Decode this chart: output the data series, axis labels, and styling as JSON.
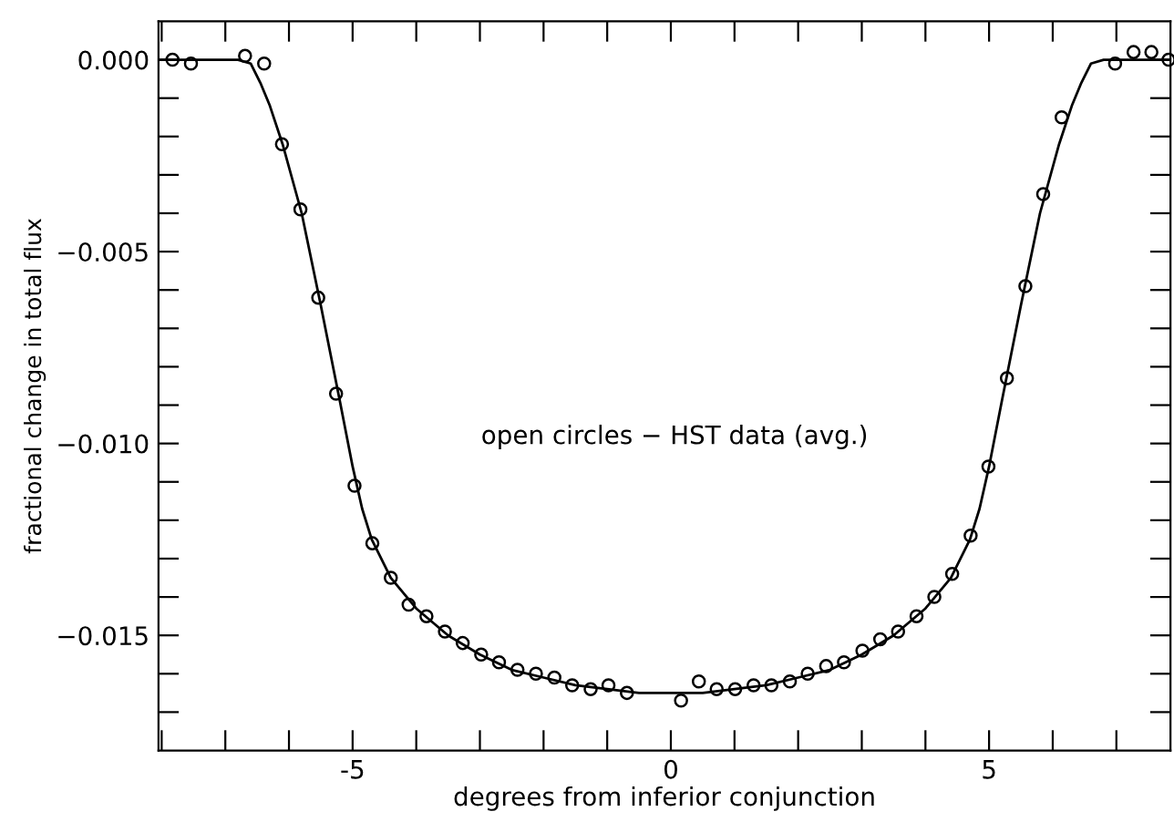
{
  "chart_data": {
    "type": "scatter",
    "xlabel": "degrees from inferior conjunction",
    "ylabel": "fractional change in total flux",
    "annotations": [
      "open circles − HST data (avg.)"
    ],
    "marker": "circle",
    "grid": false,
    "legend": false,
    "xlim": [
      -8.05,
      7.85
    ],
    "ylim": [
      -0.018,
      0.001
    ],
    "xticks": [
      {
        "value": -8,
        "label": null
      },
      {
        "value": -7,
        "label": null
      },
      {
        "value": -6,
        "label": null
      },
      -5,
      {
        "value": -4,
        "label": null
      },
      {
        "value": -3,
        "label": null
      },
      {
        "value": -2,
        "label": null
      },
      {
        "value": -1,
        "label": null
      },
      0,
      {
        "value": 1,
        "label": null
      },
      {
        "value": 2,
        "label": null
      },
      {
        "value": 3,
        "label": null
      },
      {
        "value": 4,
        "label": null
      },
      5,
      {
        "value": 6,
        "label": null
      },
      {
        "value": 7,
        "label": null
      }
    ],
    "yticks": [
      {
        "value": 0,
        "label": "0.000"
      },
      {
        "value": -0.001,
        "label": null
      },
      {
        "value": -0.002,
        "label": null
      },
      {
        "value": -0.003,
        "label": null
      },
      {
        "value": -0.004,
        "label": null
      },
      {
        "value": -0.005,
        "label": "−0.005"
      },
      {
        "value": -0.006,
        "label": null
      },
      {
        "value": -0.007,
        "label": null
      },
      {
        "value": -0.008,
        "label": null
      },
      {
        "value": -0.009,
        "label": null
      },
      {
        "value": -0.01,
        "label": "−0.010"
      },
      {
        "value": -0.011,
        "label": null
      },
      {
        "value": -0.012,
        "label": null
      },
      {
        "value": -0.013,
        "label": null
      },
      {
        "value": -0.014,
        "label": null
      },
      {
        "value": -0.015,
        "label": "−0.015"
      },
      {
        "value": -0.016,
        "label": null
      },
      {
        "value": -0.017,
        "label": null
      }
    ],
    "series": [
      {
        "color": "#000000",
        "x": [
          -7.83,
          -7.54,
          -6.69,
          -6.39,
          -6.11,
          -5.82,
          -5.54,
          -5.26,
          -4.97,
          -4.69,
          -4.4,
          -4.12,
          -3.84,
          -3.55,
          -3.27,
          -2.98,
          -2.7,
          -2.41,
          -2.12,
          -1.83,
          -1.55,
          -1.26,
          -0.98,
          -0.69,
          0.16,
          0.44,
          0.72,
          1.01,
          1.3,
          1.58,
          1.87,
          2.15,
          2.44,
          2.72,
          3.01,
          3.29,
          3.57,
          3.86,
          4.14,
          4.42,
          4.71,
          4.99,
          5.28,
          5.57,
          5.85,
          6.14,
          6.98,
          7.27,
          7.55,
          7.82
        ],
        "values": [
          0.0,
          -0.0001,
          0.0001,
          -0.0001,
          -0.0022,
          -0.0039,
          -0.0062,
          -0.0087,
          -0.0111,
          -0.0126,
          -0.0135,
          -0.0142,
          -0.0145,
          -0.0149,
          -0.0152,
          -0.0155,
          -0.0157,
          -0.0159,
          -0.016,
          -0.0161,
          -0.0163,
          -0.0164,
          -0.0163,
          -0.0165,
          -0.0167,
          -0.0162,
          -0.0164,
          -0.0164,
          -0.0163,
          -0.0163,
          -0.0162,
          -0.016,
          -0.0158,
          -0.0157,
          -0.0154,
          -0.0151,
          -0.0149,
          -0.0145,
          -0.014,
          -0.0134,
          -0.0124,
          -0.0106,
          -0.0083,
          -0.0059,
          -0.0035,
          -0.0015,
          -0.0001,
          0.0002,
          0.0002,
          0.0
        ]
      },
      {
        "type": "line",
        "color": "#000000",
        "marker": "none",
        "line_style": "solid",
        "x": [
          -8.05,
          -6.8,
          -6.6,
          -6.45,
          -6.3,
          -6.1,
          -5.8,
          -5.5,
          -5.2,
          -5.0,
          -4.85,
          -4.7,
          -4.4,
          -4.0,
          -3.5,
          -3.0,
          -2.5,
          -2.0,
          -1.5,
          -1.0,
          -0.5,
          0,
          0.5,
          1.0,
          1.5,
          2.0,
          2.5,
          3.0,
          3.5,
          4.0,
          4.4,
          4.7,
          4.85,
          5.0,
          5.2,
          5.5,
          5.8,
          6.1,
          6.3,
          6.45,
          6.6,
          6.8,
          7.85
        ],
        "values": [
          0,
          0,
          -0.0001,
          -0.0006,
          -0.0012,
          -0.0022,
          -0.004,
          -0.0064,
          -0.0089,
          -0.0106,
          -0.0117,
          -0.0125,
          -0.0135,
          -0.0143,
          -0.015,
          -0.0155,
          -0.0159,
          -0.0161,
          -0.0163,
          -0.0164,
          -0.0165,
          -0.0165,
          -0.0165,
          -0.0164,
          -0.0163,
          -0.0161,
          -0.0159,
          -0.0155,
          -0.015,
          -0.0143,
          -0.0135,
          -0.0125,
          -0.0117,
          -0.0106,
          -0.0089,
          -0.0064,
          -0.004,
          -0.0022,
          -0.0012,
          -0.0006,
          -0.0001,
          0,
          0
        ]
      }
    ]
  }
}
